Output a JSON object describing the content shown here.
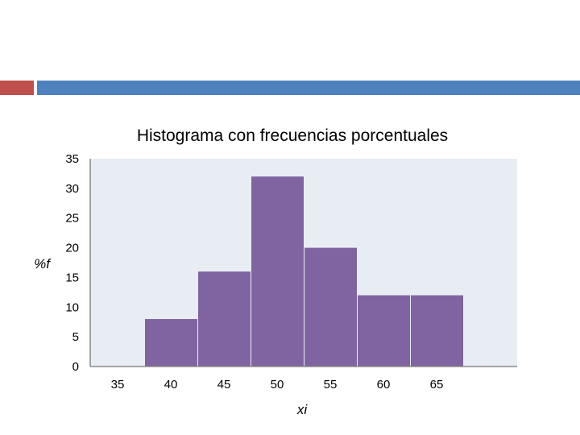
{
  "slide": {
    "accent_red": "#c0504d",
    "accent_blue": "#4f81bd"
  },
  "chart_data": {
    "type": "bar",
    "title": "Histograma con frecuencias porcentuales",
    "xlabel": "xi",
    "ylabel": "%f",
    "bins": [
      {
        "from": 35,
        "to": 40,
        "value": 0
      },
      {
        "from": 40,
        "to": 45,
        "value": 8
      },
      {
        "from": 45,
        "to": 50,
        "value": 16
      },
      {
        "from": 50,
        "to": 55,
        "value": 32
      },
      {
        "from": 55,
        "to": 60,
        "value": 20
      },
      {
        "from": 60,
        "to": 65,
        "value": 12
      },
      {
        "from": 65,
        "to": 70,
        "value": 12
      }
    ],
    "x_ticks": [
      "35",
      "40",
      "45",
      "50",
      "55",
      "60",
      "65"
    ],
    "y_ticks": [
      "0",
      "5",
      "10",
      "15",
      "20",
      "25",
      "30",
      "35"
    ],
    "ylim": [
      0,
      35
    ],
    "bar_color": "#8064a2",
    "plot_background": "#e8edf4",
    "grid": false,
    "legend": "none"
  }
}
